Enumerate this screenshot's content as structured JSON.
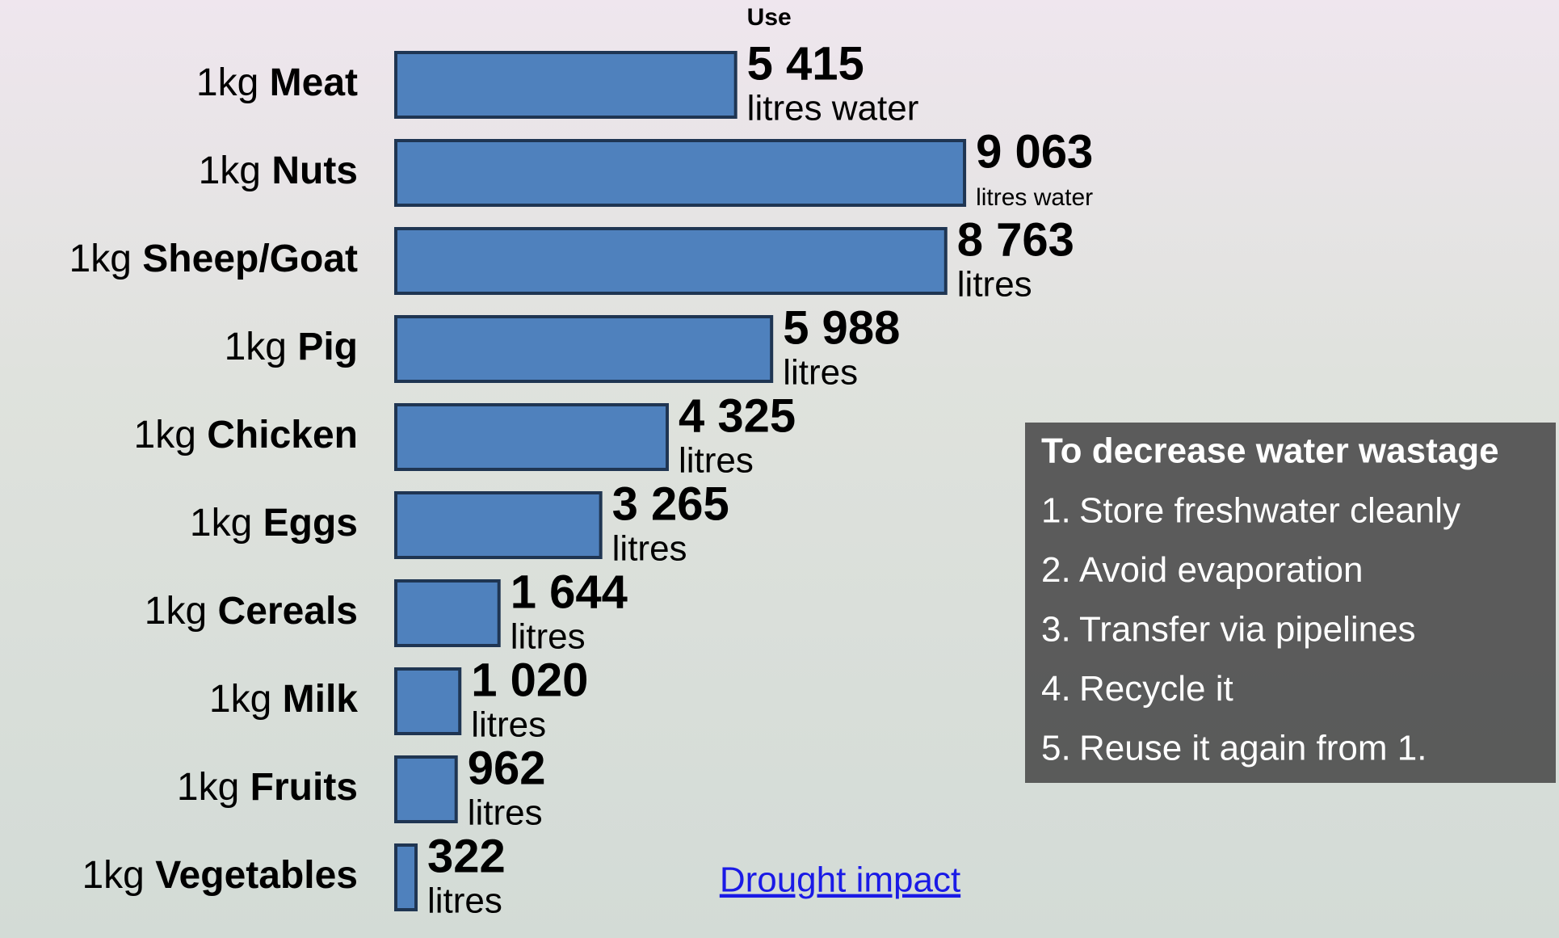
{
  "chart_data": {
    "type": "hbar",
    "category_prefix": "1kg",
    "categories": [
      "Meat",
      "Nuts",
      "Sheep/Goat",
      "Pig",
      "Chicken",
      "Eggs",
      "Cereals",
      "Milk",
      "Fruits",
      "Vegetables"
    ],
    "values": [
      5415,
      9063,
      8763,
      5988,
      4325,
      3265,
      1644,
      1020,
      962,
      322
    ],
    "value_labels": [
      "5 415",
      "9 063",
      "8 763",
      "5 988",
      "4 325",
      "3 265",
      "1 644",
      "1 020",
      "962",
      "322"
    ],
    "value_units": [
      "litres water",
      "litres water",
      "litres",
      "litres",
      "litres",
      "litres",
      "litres",
      "litres",
      "litres",
      "litres"
    ],
    "value_header": "Use",
    "color": "#4f81bd",
    "xlim": [
      0,
      16000
    ]
  },
  "panel": {
    "title": "To decrease water wastage",
    "items": [
      {
        "number": "1.",
        "text": "Store freshwater cleanly"
      },
      {
        "number": "2.",
        "text": "Avoid evaporation"
      },
      {
        "number": "3.",
        "text": "Transfer via pipelines"
      },
      {
        "number": "4.",
        "text": "Recycle it"
      },
      {
        "number": "5.",
        "text": "Reuse it again from 1."
      }
    ]
  },
  "link": "Drought impact"
}
